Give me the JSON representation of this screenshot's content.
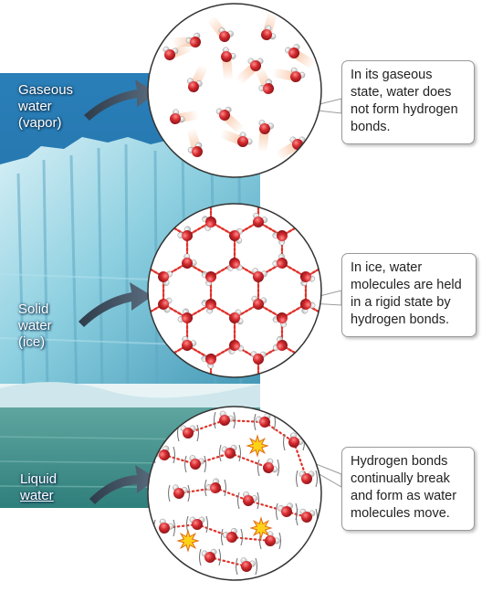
{
  "labels": {
    "gas": [
      "Gaseous",
      "water",
      "(vapor)"
    ],
    "solid": [
      "Solid",
      "water",
      "(ice)"
    ],
    "liquid": [
      "Liquid",
      "water"
    ]
  },
  "callouts": {
    "gas": [
      "In its gaseous",
      "state, water does",
      "not form hydrogen",
      "bonds."
    ],
    "solid": [
      "In ice, water",
      "molecules are held",
      "in a rigid state by",
      "hydrogen bonds."
    ],
    "liquid": [
      "Hydrogen bonds",
      "continually break",
      "and form as water",
      "molecules move."
    ]
  },
  "colors": {
    "oxygen": "#d42a2e",
    "hydrogen": "#e8e8e8",
    "hydrogen_bond": "#e0322a",
    "sky": "#1f6fa8",
    "ice": "#8fd0e2",
    "water": "#3f8f8a",
    "arrow": "#3a4a5a",
    "burst": "#ffd21a"
  }
}
